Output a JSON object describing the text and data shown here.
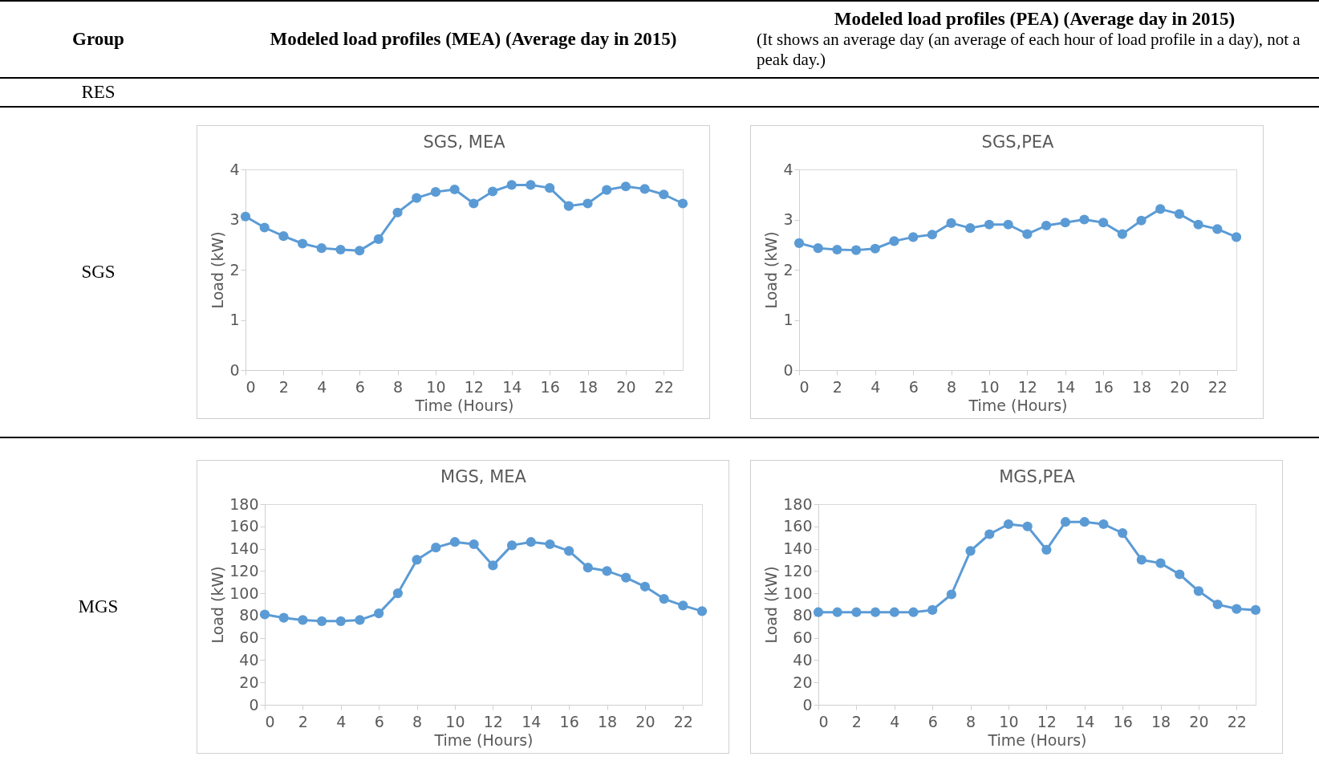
{
  "chart_data": [
    {
      "type": "line",
      "title": "SGS, MEA",
      "xlabel": "Time (Hours)",
      "ylabel": "Load (kW)",
      "x": [
        0,
        1,
        2,
        3,
        4,
        5,
        6,
        7,
        8,
        9,
        10,
        11,
        12,
        13,
        14,
        15,
        16,
        17,
        18,
        19,
        20,
        21,
        22,
        23
      ],
      "series": [
        {
          "color": "#5b9bd5",
          "values": [
            3.06,
            2.84,
            2.67,
            2.52,
            2.43,
            2.4,
            2.38,
            2.61,
            3.14,
            3.43,
            3.55,
            3.6,
            3.32,
            3.56,
            3.69,
            3.69,
            3.63,
            3.27,
            3.32,
            3.59,
            3.66,
            3.61,
            3.5,
            3.32
          ]
        }
      ],
      "xlim": [
        0,
        23
      ],
      "xticks": [
        0,
        2,
        4,
        6,
        8,
        10,
        12,
        14,
        16,
        18,
        20,
        22
      ],
      "ylim": [
        0,
        4
      ],
      "yticks": [
        0,
        1,
        2,
        3,
        4
      ],
      "marker": "circle",
      "grid": false,
      "annotations": [
        "Group",
        "Modeled load profiles (MEA) (Average day in 2015)",
        "RES",
        "SGS"
      ]
    },
    {
      "type": "line",
      "title": "SGS,PEA",
      "xlabel": "Time (Hours)",
      "ylabel": "Load (kW)",
      "x": [
        0,
        1,
        2,
        3,
        4,
        5,
        6,
        7,
        8,
        9,
        10,
        11,
        12,
        13,
        14,
        15,
        16,
        17,
        18,
        19,
        20,
        21,
        22,
        23
      ],
      "series": [
        {
          "color": "#5b9bd5",
          "values": [
            2.53,
            2.43,
            2.4,
            2.39,
            2.42,
            2.57,
            2.65,
            2.7,
            2.93,
            2.83,
            2.9,
            2.9,
            2.71,
            2.88,
            2.94,
            3.0,
            2.94,
            2.71,
            2.98,
            3.21,
            3.11,
            2.9,
            2.81,
            2.65
          ]
        }
      ],
      "xlim": [
        0,
        23
      ],
      "xticks": [
        0,
        2,
        4,
        6,
        8,
        10,
        12,
        14,
        16,
        18,
        20,
        22
      ],
      "ylim": [
        0,
        4
      ],
      "yticks": [
        0,
        1,
        2,
        3,
        4
      ],
      "marker": "circle",
      "grid": false,
      "annotations": [
        "Modeled load profiles (PEA) (Average day in 2015)",
        "(It shows an average day (an average of each hour of load profile in a day), not a peak day.)"
      ]
    },
    {
      "type": "line",
      "title": "MGS, MEA",
      "xlabel": "Time (Hours)",
      "ylabel": "Load (kW)",
      "x": [
        0,
        1,
        2,
        3,
        4,
        5,
        6,
        7,
        8,
        9,
        10,
        11,
        12,
        13,
        14,
        15,
        16,
        17,
        18,
        19,
        20,
        21,
        22,
        23
      ],
      "series": [
        {
          "color": "#5b9bd5",
          "values": [
            81,
            78,
            76,
            75,
            75,
            76,
            82,
            100,
            130,
            141,
            146,
            144,
            125,
            143,
            146,
            144,
            138,
            123,
            120,
            114,
            106,
            95,
            89,
            84
          ]
        }
      ],
      "xlim": [
        0,
        23
      ],
      "xticks": [
        0,
        2,
        4,
        6,
        8,
        10,
        12,
        14,
        16,
        18,
        20,
        22
      ],
      "ylim": [
        0,
        180
      ],
      "yticks": [
        0,
        20,
        40,
        60,
        80,
        100,
        120,
        140,
        160,
        180
      ],
      "marker": "circle",
      "grid": false,
      "annotations": [
        "MGS"
      ]
    },
    {
      "type": "line",
      "title": "MGS,PEA",
      "xlabel": "Time (Hours)",
      "ylabel": "Load (kW)",
      "x": [
        0,
        1,
        2,
        3,
        4,
        5,
        6,
        7,
        8,
        9,
        10,
        11,
        12,
        13,
        14,
        15,
        16,
        17,
        18,
        19,
        20,
        21,
        22,
        23
      ],
      "series": [
        {
          "color": "#5b9bd5",
          "values": [
            83,
            83,
            83,
            83,
            83,
            83,
            85,
            99,
            138,
            153,
            162,
            160,
            139,
            164,
            164,
            162,
            154,
            130,
            127,
            117,
            102,
            90,
            86,
            85
          ]
        }
      ],
      "xlim": [
        0,
        23
      ],
      "xticks": [
        0,
        2,
        4,
        6,
        8,
        10,
        12,
        14,
        16,
        18,
        20,
        22
      ],
      "ylim": [
        0,
        180
      ],
      "yticks": [
        0,
        20,
        40,
        60,
        80,
        100,
        120,
        140,
        160,
        180
      ],
      "marker": "circle",
      "grid": false
    }
  ]
}
